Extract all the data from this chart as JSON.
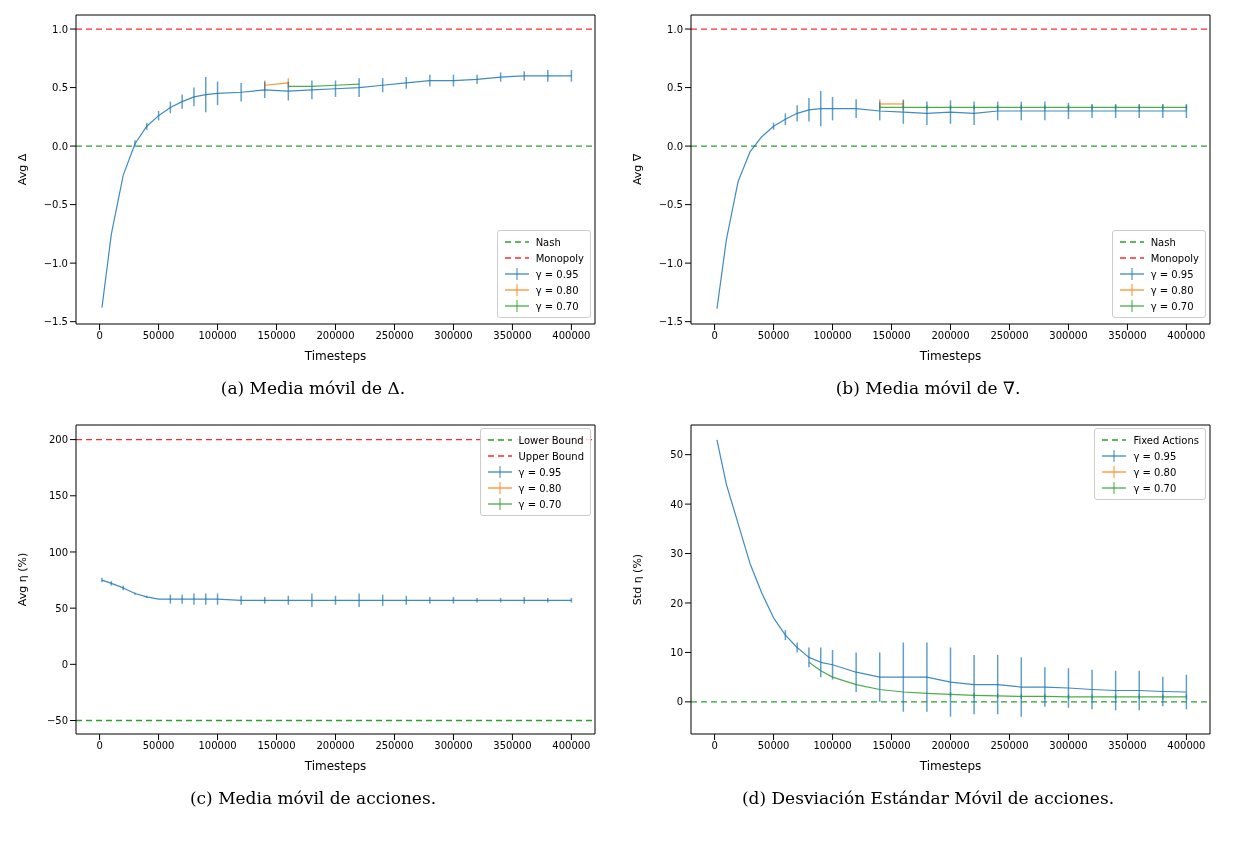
{
  "chart_data": [
    {
      "type": "line",
      "xlabel": "Timesteps",
      "ylabel": "Avg Δ",
      "annotations": [
        "(a) Media móvil de Δ."
      ],
      "legend": "bottom right",
      "grid": false,
      "line_style": "solid",
      "xlim": [
        -20000,
        420000
      ],
      "xticks": [
        0,
        50000,
        100000,
        150000,
        200000,
        250000,
        300000,
        350000,
        400000
      ],
      "ylim": [
        -1.52,
        1.12
      ],
      "yticks": [
        {
          "value": -1.5,
          "label": "−1.5"
        },
        {
          "value": -1,
          "label": "−1.0"
        },
        {
          "value": -0.5,
          "label": "−0.5"
        },
        {
          "value": 0,
          "label": "0.0"
        },
        0.5,
        {
          "value": 1,
          "label": "1.0"
        }
      ],
      "ref_lines": [
        {
          "axis": "y",
          "value": 0,
          "label": "Nash",
          "color": "#2ca02c",
          "line_style": "dashed"
        },
        {
          "axis": "y",
          "value": 1,
          "label": "Monopoly",
          "color": "#ff2a2a",
          "line_style": "dashed"
        }
      ],
      "x": [
        2000,
        10000,
        20000,
        30000,
        40000,
        50000,
        60000,
        70000,
        80000,
        90000,
        100000,
        120000,
        140000,
        160000,
        180000,
        200000,
        220000,
        240000,
        260000,
        280000,
        300000,
        320000,
        340000,
        360000,
        380000,
        400000
      ],
      "series": [
        {
          "name": "γ = 0.95",
          "color": "#1f77b4",
          "values": [
            -1.38,
            -0.75,
            -0.25,
            0.02,
            0.17,
            0.26,
            0.33,
            0.38,
            0.42,
            0.44,
            0.45,
            0.46,
            0.48,
            0.47,
            0.48,
            0.49,
            0.5,
            0.52,
            0.54,
            0.56,
            0.56,
            0.57,
            0.59,
            0.6,
            0.6,
            0.6
          ],
          "errors": [
            null,
            null,
            null,
            0.03,
            0.03,
            0.04,
            0.05,
            0.06,
            0.08,
            0.15,
            0.1,
            0.08,
            0.07,
            0.08,
            0.08,
            0.07,
            0.08,
            0.06,
            0.05,
            0.05,
            0.05,
            0.04,
            0.04,
            0.04,
            0.05,
            0.05
          ]
        },
        {
          "name": "γ = 0.80",
          "color": "#ff7f0e",
          "values": [
            null,
            null,
            null,
            null,
            null,
            null,
            null,
            null,
            null,
            null,
            null,
            null,
            0.52,
            0.54,
            null,
            null,
            null,
            null,
            null,
            null,
            null,
            null,
            null,
            null,
            null,
            null
          ],
          "errors": [
            null,
            null,
            null,
            null,
            null,
            null,
            null,
            null,
            null,
            null,
            null,
            null,
            0.04,
            0.04,
            null,
            null,
            null,
            null,
            null,
            null,
            null,
            null,
            null,
            null,
            null,
            null
          ]
        },
        {
          "name": "γ = 0.70",
          "color": "#2ca02c",
          "values": [
            null,
            null,
            null,
            null,
            null,
            null,
            null,
            null,
            null,
            null,
            null,
            null,
            null,
            0.51,
            0.51,
            0.52,
            0.53,
            null,
            null,
            null,
            null,
            null,
            null,
            null,
            null,
            null
          ],
          "errors": [
            null,
            null,
            null,
            null,
            null,
            null,
            null,
            null,
            null,
            null,
            null,
            null,
            null,
            null,
            null,
            null,
            null,
            null,
            null,
            null,
            null,
            null,
            null,
            null,
            null,
            null
          ]
        }
      ]
    },
    {
      "type": "line",
      "xlabel": "Timesteps",
      "ylabel": "Avg ∇",
      "annotations": [
        "(b) Media móvil de ∇."
      ],
      "legend": "bottom right",
      "grid": false,
      "line_style": "solid",
      "xlim": [
        -20000,
        420000
      ],
      "xticks": [
        0,
        50000,
        100000,
        150000,
        200000,
        250000,
        300000,
        350000,
        400000
      ],
      "ylim": [
        -1.52,
        1.12
      ],
      "yticks": [
        {
          "value": -1.5,
          "label": "−1.5"
        },
        {
          "value": -1,
          "label": "−1.0"
        },
        {
          "value": -0.5,
          "label": "−0.5"
        },
        {
          "value": 0,
          "label": "0.0"
        },
        0.5,
        {
          "value": 1,
          "label": "1.0"
        }
      ],
      "ref_lines": [
        {
          "axis": "y",
          "value": 0,
          "label": "Nash",
          "color": "#2ca02c",
          "line_style": "dashed"
        },
        {
          "axis": "y",
          "value": 1,
          "label": "Monopoly",
          "color": "#ff2a2a",
          "line_style": "dashed"
        }
      ],
      "x": [
        2000,
        10000,
        20000,
        30000,
        40000,
        50000,
        60000,
        70000,
        80000,
        90000,
        100000,
        120000,
        140000,
        160000,
        180000,
        200000,
        220000,
        240000,
        260000,
        280000,
        300000,
        320000,
        340000,
        360000,
        380000,
        400000
      ],
      "series": [
        {
          "name": "γ = 0.95",
          "color": "#1f77b4",
          "values": [
            -1.39,
            -0.8,
            -0.3,
            -0.05,
            0.08,
            0.17,
            0.23,
            0.28,
            0.31,
            0.32,
            0.32,
            0.32,
            0.3,
            0.29,
            0.28,
            0.29,
            0.28,
            0.3,
            0.3,
            0.3,
            0.3,
            0.3,
            0.3,
            0.3,
            0.3,
            0.3
          ],
          "errors": [
            null,
            null,
            null,
            null,
            null,
            0.03,
            0.05,
            0.07,
            0.1,
            0.15,
            0.1,
            0.08,
            0.08,
            0.1,
            0.1,
            0.1,
            0.1,
            0.08,
            0.08,
            0.08,
            0.07,
            0.06,
            0.06,
            0.06,
            0.06,
            0.06
          ]
        },
        {
          "name": "γ = 0.80",
          "color": "#ff7f0e",
          "values": [
            null,
            null,
            null,
            null,
            null,
            null,
            null,
            null,
            null,
            null,
            null,
            null,
            0.36,
            0.36,
            null,
            null,
            null,
            null,
            null,
            null,
            null,
            null,
            null,
            null,
            null,
            null
          ],
          "errors": [
            null,
            null,
            null,
            null,
            null,
            null,
            null,
            null,
            null,
            null,
            null,
            null,
            0.04,
            0.04,
            null,
            null,
            null,
            null,
            null,
            null,
            null,
            null,
            null,
            null,
            null,
            null
          ]
        },
        {
          "name": "γ = 0.70",
          "color": "#2ca02c",
          "values": [
            null,
            null,
            null,
            null,
            null,
            null,
            null,
            null,
            null,
            null,
            null,
            null,
            0.33,
            0.33,
            0.33,
            0.33,
            0.33,
            0.33,
            0.33,
            0.33,
            0.33,
            0.33,
            0.33,
            0.33,
            0.33,
            0.33
          ],
          "errors": [
            null,
            null,
            null,
            null,
            null,
            null,
            null,
            null,
            null,
            null,
            null,
            null,
            0.02,
            0.02,
            0.02,
            0.02,
            0.02,
            0.02,
            0.02,
            0.02,
            0.02,
            0.02,
            0.02,
            0.02,
            0.02,
            0.02
          ]
        }
      ]
    },
    {
      "type": "line",
      "xlabel": "Timesteps",
      "ylabel": "Avg η (%)",
      "annotations": [
        "(c) Media móvil de acciones."
      ],
      "legend": "top right",
      "grid": false,
      "line_style": "solid",
      "xlim": [
        -20000,
        420000
      ],
      "xticks": [
        0,
        50000,
        100000,
        150000,
        200000,
        250000,
        300000,
        350000,
        400000
      ],
      "ylim": [
        -62,
        213
      ],
      "yticks": [
        {
          "value": -50,
          "label": "−50"
        },
        0,
        50,
        100,
        150,
        200
      ],
      "ref_lines": [
        {
          "axis": "y",
          "value": -50,
          "label": "Lower Bound",
          "color": "#2ca02c",
          "line_style": "dashed"
        },
        {
          "axis": "y",
          "value": 200,
          "label": "Upper Bound",
          "color": "#ff2a2a",
          "line_style": "dashed"
        }
      ],
      "x": [
        2000,
        10000,
        20000,
        30000,
        40000,
        50000,
        60000,
        70000,
        80000,
        90000,
        100000,
        120000,
        140000,
        160000,
        180000,
        200000,
        220000,
        240000,
        260000,
        280000,
        300000,
        320000,
        340000,
        360000,
        380000,
        400000
      ],
      "series": [
        {
          "name": "γ = 0.95",
          "color": "#1f77b4",
          "values": [
            75,
            72,
            68,
            63,
            60,
            58,
            58,
            58,
            58,
            58,
            58,
            57,
            57,
            57,
            57,
            57,
            57,
            57,
            57,
            57,
            57,
            57,
            57,
            57,
            57,
            57
          ],
          "errors": [
            2,
            2,
            2,
            1,
            1,
            null,
            4,
            4,
            5,
            5,
            5,
            4,
            3,
            4,
            6,
            4,
            6,
            5,
            4,
            3,
            3,
            2,
            2,
            3,
            2,
            2
          ]
        },
        {
          "name": "γ = 0.80",
          "color": "#ff7f0e",
          "values": [
            null,
            null,
            null,
            null,
            null,
            null,
            null,
            null,
            null,
            null,
            null,
            null,
            null,
            null,
            null,
            null,
            null,
            null,
            null,
            null,
            null,
            null,
            null,
            null,
            null,
            null
          ]
        },
        {
          "name": "γ = 0.70",
          "color": "#2ca02c",
          "values": [
            null,
            null,
            null,
            null,
            null,
            null,
            null,
            null,
            null,
            null,
            null,
            null,
            null,
            null,
            null,
            null,
            null,
            null,
            null,
            null,
            null,
            null,
            null,
            null,
            null,
            null
          ]
        }
      ]
    },
    {
      "type": "line",
      "xlabel": "Timesteps",
      "ylabel": "Std η (%)",
      "annotations": [
        "(d) Desviación Estándar Móvil de acciones."
      ],
      "legend": "top right",
      "grid": false,
      "line_style": "solid",
      "xlim": [
        -20000,
        420000
      ],
      "xticks": [
        0,
        50000,
        100000,
        150000,
        200000,
        250000,
        300000,
        350000,
        400000
      ],
      "ylim": [
        -6.5,
        56
      ],
      "yticks": [
        0,
        10,
        20,
        30,
        40,
        50
      ],
      "ref_lines": [
        {
          "axis": "y",
          "value": 0,
          "label": "Fixed Actions",
          "color": "#2ca02c",
          "line_style": "dashed"
        }
      ],
      "x": [
        2000,
        10000,
        20000,
        30000,
        40000,
        50000,
        60000,
        70000,
        80000,
        90000,
        100000,
        120000,
        140000,
        160000,
        180000,
        200000,
        220000,
        240000,
        260000,
        280000,
        300000,
        320000,
        340000,
        360000,
        380000,
        400000
      ],
      "series": [
        {
          "name": "γ = 0.95",
          "color": "#1f77b4",
          "values": [
            53,
            44,
            36,
            28,
            22,
            17,
            13.5,
            11,
            9,
            8,
            7.5,
            6,
            5,
            5,
            5,
            4,
            3.5,
            3.5,
            3,
            3,
            2.8,
            2.5,
            2.3,
            2.3,
            2.1,
            2
          ],
          "errors": [
            null,
            null,
            null,
            null,
            null,
            null,
            1,
            1,
            2,
            3,
            3,
            4,
            5,
            7,
            7,
            7,
            6,
            6,
            6,
            4,
            4,
            4,
            4,
            4,
            3,
            3.5
          ]
        },
        {
          "name": "γ = 0.80",
          "color": "#ff7f0e",
          "values": [
            null,
            null,
            null,
            null,
            null,
            null,
            null,
            null,
            null,
            null,
            null,
            null,
            null,
            null,
            null,
            null,
            null,
            null,
            null,
            null,
            null,
            null,
            null,
            null,
            null,
            null
          ]
        },
        {
          "name": "γ = 0.70",
          "color": "#2ca02c",
          "values": [
            null,
            null,
            null,
            null,
            null,
            null,
            null,
            null,
            8,
            6.3,
            5,
            3.5,
            2.5,
            2,
            1.7,
            1.5,
            1.3,
            1.2,
            1.1,
            1.1,
            1,
            1,
            1,
            1,
            1,
            1
          ],
          "errors": [
            null,
            null,
            null,
            null,
            null,
            null,
            null,
            null,
            null,
            null,
            null,
            null,
            null,
            null,
            null,
            0.5,
            0.5,
            0.5,
            0.5,
            0.5,
            0.5,
            0.5,
            0.5,
            0.5,
            0.5,
            0.5
          ]
        }
      ]
    }
  ]
}
